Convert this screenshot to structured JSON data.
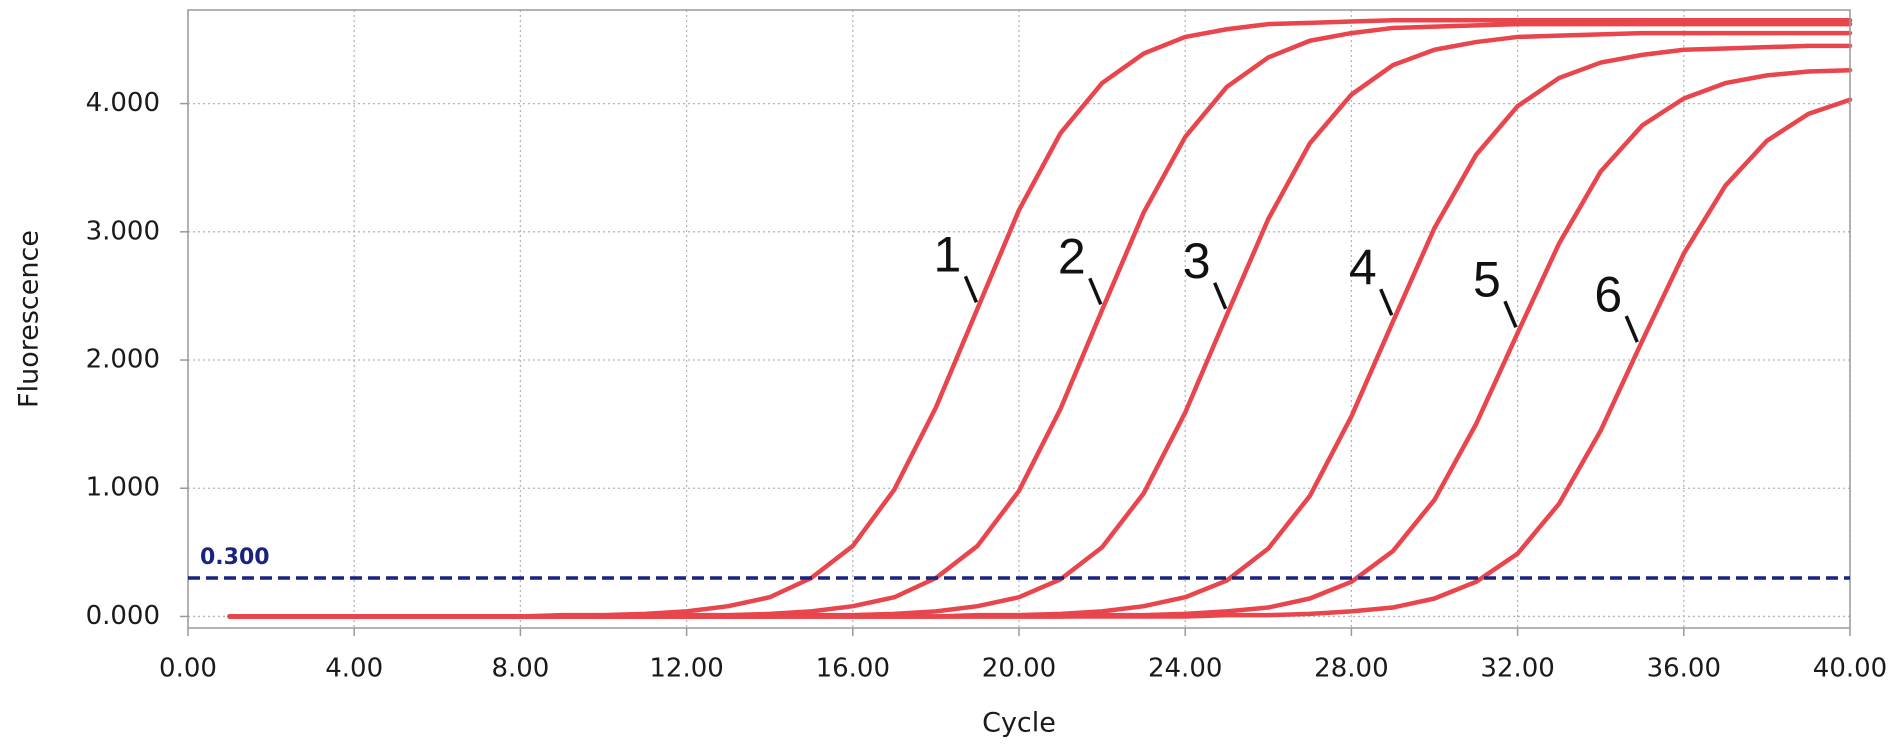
{
  "chart_data": {
    "type": "line",
    "x_label": "Cycle",
    "y_label": "Fluorescence",
    "x": [
      1,
      2,
      3,
      4,
      5,
      6,
      7,
      8,
      9,
      10,
      11,
      12,
      13,
      14,
      15,
      16,
      17,
      18,
      19,
      20,
      21,
      22,
      23,
      24,
      25,
      26,
      27,
      28,
      29,
      30,
      31,
      32,
      33,
      34,
      35,
      36,
      37,
      38,
      39,
      40
    ],
    "series": [
      {
        "name": "1",
        "color": "#e8454d",
        "values": [
          0,
          0,
          0,
          0,
          0,
          0,
          0,
          0,
          0.01,
          0.01,
          0.02,
          0.04,
          0.08,
          0.15,
          0.3,
          0.55,
          0.99,
          1.63,
          2.4,
          3.17,
          3.77,
          4.16,
          4.39,
          4.52,
          4.58,
          4.62,
          4.63,
          4.64,
          4.65,
          4.65,
          4.65,
          4.65,
          4.65,
          4.65,
          4.65,
          4.65,
          4.65,
          4.65,
          4.65,
          4.65
        ]
      },
      {
        "name": "2",
        "color": "#e8454d",
        "values": [
          0,
          0,
          0,
          0,
          0,
          0,
          0,
          0,
          0,
          0,
          0,
          0.01,
          0.01,
          0.02,
          0.04,
          0.08,
          0.15,
          0.3,
          0.55,
          0.98,
          1.62,
          2.39,
          3.15,
          3.74,
          4.13,
          4.36,
          4.49,
          4.55,
          4.59,
          4.6,
          4.61,
          4.62,
          4.62,
          4.62,
          4.62,
          4.62,
          4.62,
          4.62,
          4.62,
          4.62
        ]
      },
      {
        "name": "3",
        "color": "#e8454d",
        "values": [
          0,
          0,
          0,
          0,
          0,
          0,
          0,
          0,
          0,
          0,
          0,
          0,
          0,
          0,
          0.01,
          0.01,
          0.02,
          0.04,
          0.08,
          0.15,
          0.29,
          0.54,
          0.96,
          1.59,
          2.35,
          3.1,
          3.69,
          4.07,
          4.3,
          4.42,
          4.48,
          4.52,
          4.53,
          4.54,
          4.55,
          4.55,
          4.55,
          4.55,
          4.55,
          4.55
        ]
      },
      {
        "name": "4",
        "color": "#e8454d",
        "values": [
          0,
          0,
          0,
          0,
          0,
          0,
          0,
          0,
          0,
          0,
          0,
          0,
          0,
          0,
          0,
          0,
          0,
          0,
          0.01,
          0.01,
          0.02,
          0.04,
          0.08,
          0.15,
          0.28,
          0.53,
          0.94,
          1.56,
          2.3,
          3.03,
          3.6,
          3.98,
          4.2,
          4.32,
          4.38,
          4.42,
          4.43,
          4.44,
          4.45,
          4.45
        ]
      },
      {
        "name": "5",
        "color": "#e8454d",
        "values": [
          0,
          0,
          0,
          0,
          0,
          0,
          0,
          0,
          0,
          0,
          0,
          0,
          0,
          0,
          0,
          0,
          0,
          0,
          0,
          0,
          0,
          0.01,
          0.01,
          0.02,
          0.04,
          0.07,
          0.14,
          0.27,
          0.51,
          0.91,
          1.5,
          2.21,
          2.91,
          3.47,
          3.83,
          4.04,
          4.16,
          4.22,
          4.25,
          4.26
        ]
      },
      {
        "name": "6",
        "color": "#e8454d",
        "values": [
          0,
          0,
          0,
          0,
          0,
          0,
          0,
          0,
          0,
          0,
          0,
          0,
          0,
          0,
          0,
          0,
          0,
          0,
          0,
          0,
          0,
          0,
          0,
          0,
          0.01,
          0.01,
          0.02,
          0.04,
          0.07,
          0.14,
          0.27,
          0.49,
          0.88,
          1.45,
          2.15,
          2.83,
          3.36,
          3.71,
          3.92,
          4.03
        ]
      }
    ],
    "threshold": {
      "value": 0.3,
      "label": "0.300",
      "color": "#1a237e"
    },
    "xlim": [
      0,
      40
    ],
    "ylim": [
      -0.09,
      4.73
    ],
    "xticks": [
      {
        "value": 0,
        "label": "0.00"
      },
      {
        "value": 4,
        "label": "4.00"
      },
      {
        "value": 8,
        "label": "8.00"
      },
      {
        "value": 12,
        "label": "12.00"
      },
      {
        "value": 16,
        "label": "16.00"
      },
      {
        "value": 20,
        "label": "20.00"
      },
      {
        "value": 24,
        "label": "24.00"
      },
      {
        "value": 28,
        "label": "28.00"
      },
      {
        "value": 32,
        "label": "32.00"
      },
      {
        "value": 36,
        "label": "36.00"
      },
      {
        "value": 40,
        "label": "40.00"
      }
    ],
    "yticks": [
      {
        "value": 0,
        "label": "0.000"
      },
      {
        "value": 1,
        "label": "1.000"
      },
      {
        "value": 2,
        "label": "2.000"
      },
      {
        "value": 3,
        "label": "3.000"
      },
      {
        "value": 4,
        "label": "4.000"
      }
    ],
    "grid": true
  }
}
